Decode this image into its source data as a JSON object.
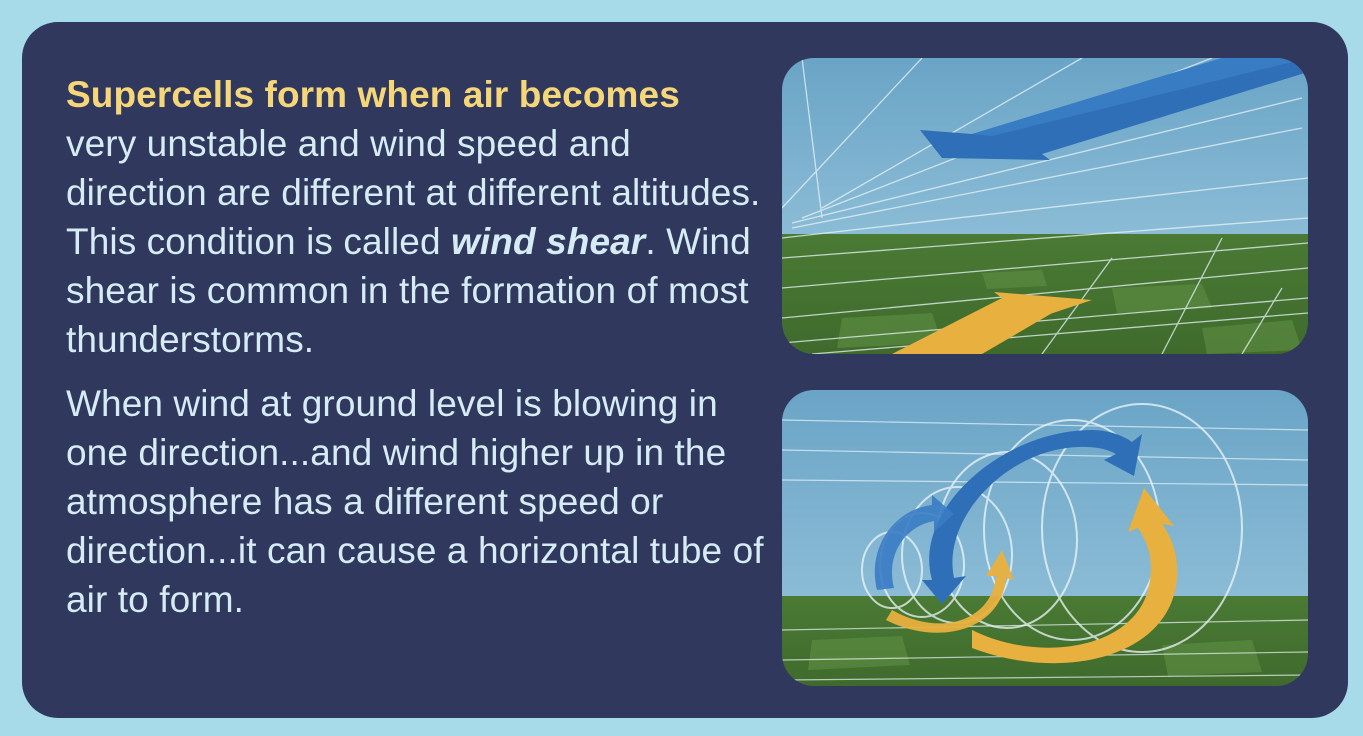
{
  "content": {
    "paragraph_1": {
      "lead": "Supercells form when air becomes",
      "part_1": "very unstable and wind speed and direction are different at different altitudes. This condition is called",
      "term": "wind shear",
      "part_2": ". Wind shear is common in the formation of most thunderstorms."
    },
    "paragraph_2": {
      "text": "When wind at ground level is blowing in one direction...and wind higher up in the atmosphere has a different speed or direction...it can cause a horizontal tube of air to form."
    }
  },
  "colors": {
    "background": "#a8dbe9",
    "panel": "#31385d",
    "highlight_text": "#f5d77a",
    "body_text": "#d6ecf5",
    "sky": "#6fa8c9",
    "ground": "#4f7d38",
    "upper_wind_arrow": "#2f6fb8",
    "ground_wind_arrow": "#e8b03e"
  },
  "illustrations": [
    {
      "name": "wind-shear-arrows-illustration",
      "icons": [
        "upper-wind-arrow-icon",
        "ground-wind-arrow-icon"
      ]
    },
    {
      "name": "horizontal-air-tube-illustration",
      "icons": [
        "rotating-blue-arrow-icon",
        "rotating-yellow-arrow-icon"
      ]
    }
  ]
}
